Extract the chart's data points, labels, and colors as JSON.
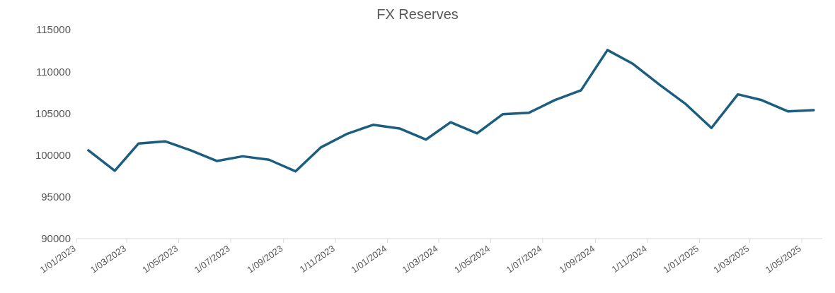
{
  "chart_data": {
    "type": "line",
    "title": "FX Reserves",
    "x": [
      "2023-01-15",
      "2023-02-15",
      "2023-03-15",
      "2023-04-15",
      "2023-05-15",
      "2023-06-15",
      "2023-07-15",
      "2023-08-15",
      "2023-09-15",
      "2023-10-15",
      "2023-11-15",
      "2023-12-15",
      "2024-01-15",
      "2024-02-15",
      "2024-03-15",
      "2024-04-15",
      "2024-05-15",
      "2024-06-15",
      "2024-07-15",
      "2024-08-15",
      "2024-09-15",
      "2024-10-15",
      "2024-11-15",
      "2024-12-15",
      "2025-01-15",
      "2025-02-15",
      "2025-03-15",
      "2025-04-15",
      "2025-05-15"
    ],
    "series": [
      {
        "color": "#1b5e80",
        "values": [
          100560,
          98120,
          101390,
          101640,
          100560,
          99290,
          99850,
          99440,
          98050,
          100930,
          102560,
          103610,
          103180,
          101850,
          103920,
          102590,
          104880,
          105060,
          106570,
          107750,
          112560,
          110900,
          108420,
          106170,
          103240,
          107260,
          106570,
          105220,
          105370
        ]
      }
    ],
    "xlim": [
      "2023-01-01",
      "2025-05-25"
    ],
    "xticks": [
      {
        "value": "2023-01-01",
        "label": "1/01/2023"
      },
      {
        "value": "2023-03-01",
        "label": "1/03/2023"
      },
      {
        "value": "2023-05-01",
        "label": "1/05/2023"
      },
      {
        "value": "2023-07-01",
        "label": "1/07/2023"
      },
      {
        "value": "2023-09-01",
        "label": "1/09/2023"
      },
      {
        "value": "2023-11-01",
        "label": "1/11/2023"
      },
      {
        "value": "2024-01-01",
        "label": "1/01/2024"
      },
      {
        "value": "2024-03-01",
        "label": "1/03/2024"
      },
      {
        "value": "2024-05-01",
        "label": "1/05/2024"
      },
      {
        "value": "2024-07-01",
        "label": "1/07/2024"
      },
      {
        "value": "2024-09-01",
        "label": "1/09/2024"
      },
      {
        "value": "2024-11-01",
        "label": "1/11/2024"
      },
      {
        "value": "2025-01-01",
        "label": "1/01/2025"
      },
      {
        "value": "2025-03-01",
        "label": "1/03/2025"
      },
      {
        "value": "2025-05-01",
        "label": "1/05/2025"
      }
    ],
    "ylim": [
      90000,
      115000
    ],
    "yticks": [
      90000,
      95000,
      100000,
      105000,
      110000,
      115000
    ],
    "grid": false,
    "legend": false,
    "marker": "none",
    "line_style": "solid"
  }
}
